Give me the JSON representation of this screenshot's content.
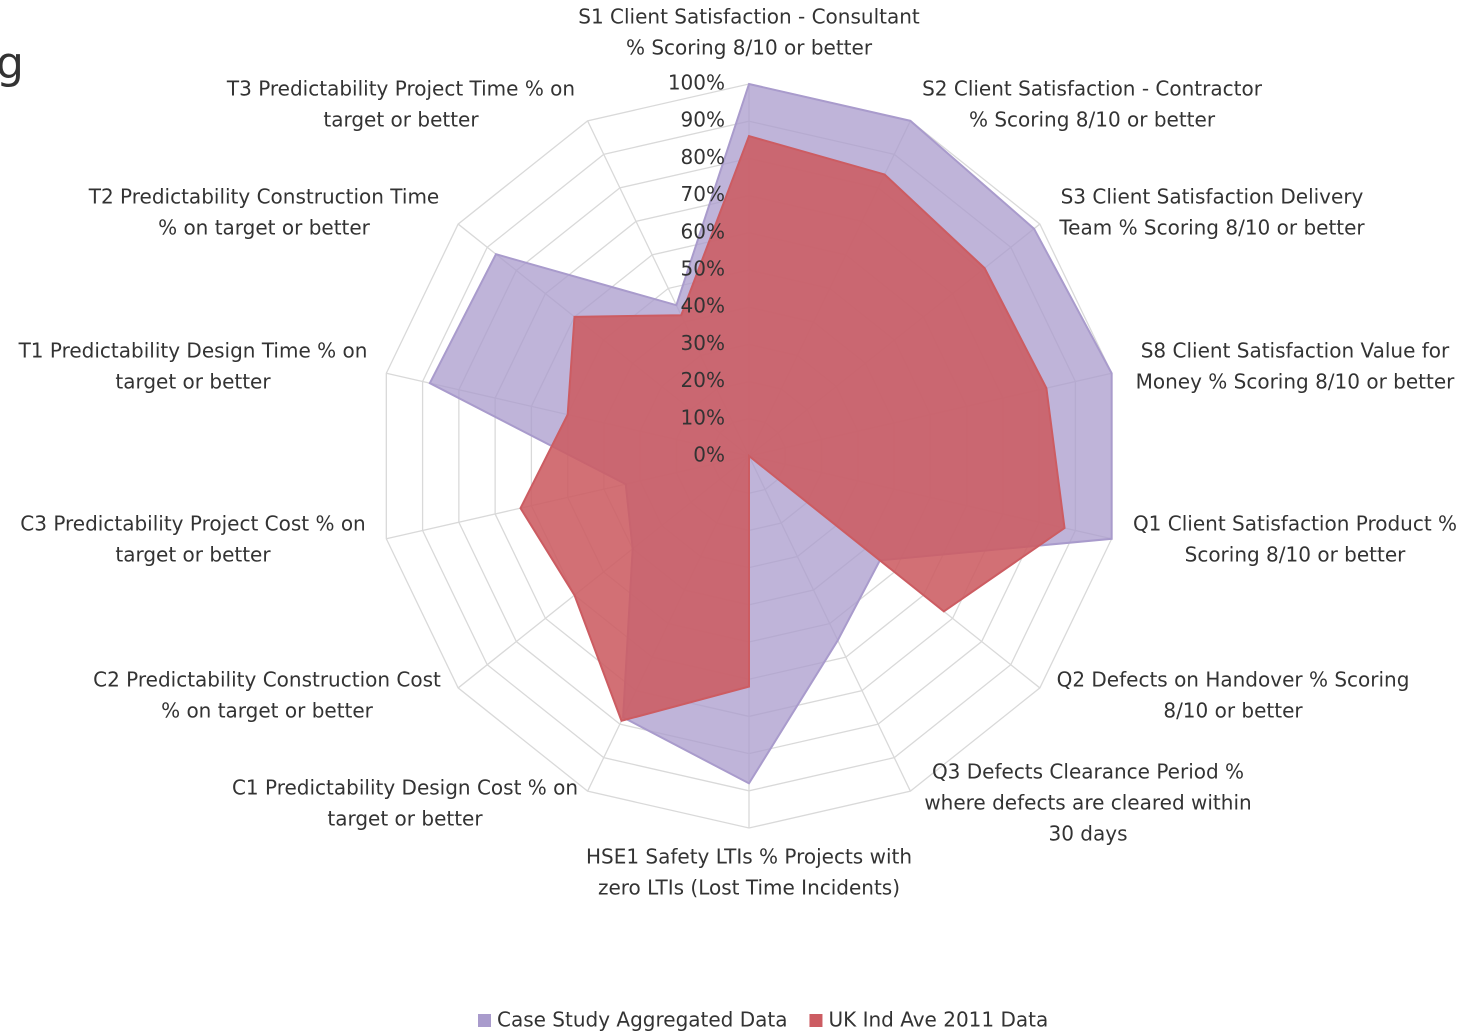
{
  "fragment": "g",
  "chart_data": {
    "type": "radar",
    "categories": [
      [
        "S1 Client Satisfaction - Consultant",
        "% Scoring 8/10 or better"
      ],
      [
        "S2 Client Satisfaction - Contractor",
        "% Scoring 8/10 or better"
      ],
      [
        "S3 Client Satisfaction Delivery",
        "Team % Scoring 8/10 or better"
      ],
      [
        "S8 Client Satisfaction Value for",
        "Money % Scoring 8/10 or better"
      ],
      [
        "Q1 Client Satisfaction Product %",
        "Scoring 8/10 or better"
      ],
      [
        "Q2 Defects on Handover % Scoring",
        "8/10 or better"
      ],
      [
        "Q3 Defects Clearance Period %",
        "where defects are cleared within",
        "30 days"
      ],
      [
        "HSE1 Safety LTIs % Projects with",
        "zero LTIs (Lost Time Incidents)"
      ],
      [
        "C1 Predictability Design Cost % on",
        "target or better"
      ],
      [
        "C2 Predictability Construction Cost",
        "% on target or better"
      ],
      [
        "C3 Predictability Project Cost % on",
        "target or better"
      ],
      [
        "T1 Predictability Design Time % on",
        "target or better"
      ],
      [
        "T2 Predictability Construction Time",
        "% on target or better"
      ],
      [
        "T3 Predictability Project Time % on",
        "target or better"
      ]
    ],
    "series": [
      {
        "name": "Case Study Aggregated Data",
        "color": "#a99bcc",
        "values": [
          100,
          100,
          98,
          100,
          100,
          45,
          55,
          88,
          78,
          40,
          34,
          88,
          87,
          45
        ]
      },
      {
        "name": "UK Ind Ave 2011 Data",
        "color": "#cc5c62",
        "values": [
          86,
          84,
          81,
          82,
          87,
          67,
          0,
          62,
          79,
          60,
          63,
          50,
          60,
          42
        ]
      }
    ],
    "ylim": [
      0,
      100
    ],
    "yticks": [
      {
        "value": 0,
        "label": "0%"
      },
      {
        "value": 10,
        "label": "10%"
      },
      {
        "value": 20,
        "label": "20%"
      },
      {
        "value": 30,
        "label": "30%"
      },
      {
        "value": 40,
        "label": "40%"
      },
      {
        "value": 50,
        "label": "50%"
      },
      {
        "value": 60,
        "label": "60%"
      },
      {
        "value": 70,
        "label": "70%"
      },
      {
        "value": 80,
        "label": "80%"
      },
      {
        "value": 90,
        "label": "90%"
      },
      {
        "value": 100,
        "label": "100%"
      }
    ],
    "grid": true,
    "legend": "bottom"
  }
}
